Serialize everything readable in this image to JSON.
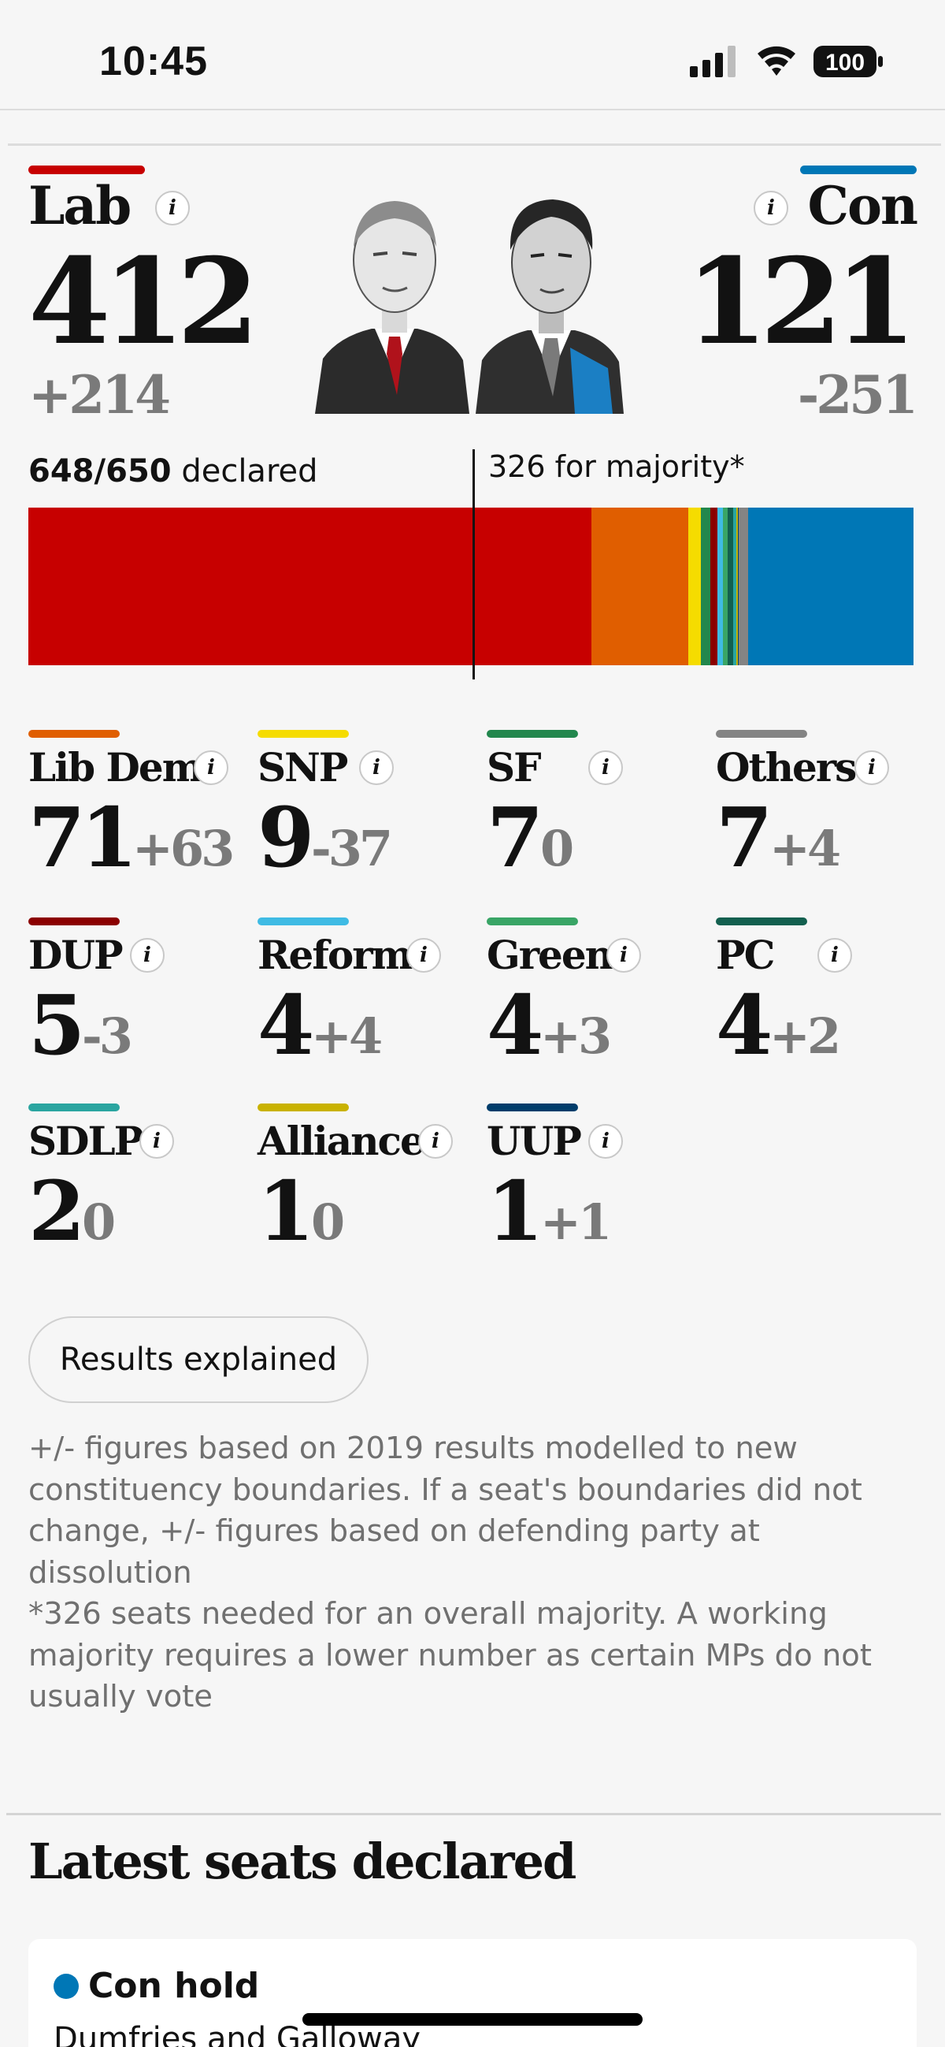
{
  "status_bar": {
    "time": "10:45",
    "battery": "100"
  },
  "headline": {
    "lab": {
      "name": "Lab",
      "seats": "412",
      "change": "+214",
      "color": "#c70000"
    },
    "con": {
      "name": "Con",
      "seats": "121",
      "change": "-251",
      "color": "#0077b6"
    }
  },
  "seat_bar": {
    "declared_count": "648/650",
    "declared_label": "declared",
    "majority_label": "326 for majority*",
    "total_seats": 650,
    "segments": [
      {
        "party": "Lab",
        "seats": 412,
        "color": "#c70000"
      },
      {
        "party": "Lib Dem",
        "seats": 71,
        "color": "#e05e00"
      },
      {
        "party": "SNP",
        "seats": 9,
        "color": "#f5dc00"
      },
      {
        "party": "SF",
        "seats": 7,
        "color": "#22874d"
      },
      {
        "party": "DUP",
        "seats": 5,
        "color": "#8b0000"
      },
      {
        "party": "Reform",
        "seats": 4,
        "color": "#3fbbe4"
      },
      {
        "party": "Green",
        "seats": 4,
        "color": "#39a566"
      },
      {
        "party": "PC",
        "seats": 4,
        "color": "#13604f"
      },
      {
        "party": "SDLP",
        "seats": 2,
        "color": "#2aa5a0"
      },
      {
        "party": "Alliance",
        "seats": 1,
        "color": "#c9b200"
      },
      {
        "party": "UUP",
        "seats": 1,
        "color": "#003d6b"
      },
      {
        "party": "Others",
        "seats": 7,
        "color": "#848484"
      },
      {
        "party": "Con",
        "seats": 121,
        "color": "#0077b6"
      }
    ]
  },
  "parties": [
    {
      "name": "Lib Dem",
      "seats": "71",
      "change": "+63",
      "color": "#e05e00"
    },
    {
      "name": "SNP",
      "seats": "9",
      "change": "-37",
      "color": "#f5dc00"
    },
    {
      "name": "SF",
      "seats": "7",
      "change": "0",
      "color": "#22874d"
    },
    {
      "name": "Others",
      "seats": "7",
      "change": "+4",
      "color": "#848484"
    },
    {
      "name": "DUP",
      "seats": "5",
      "change": "-3",
      "color": "#8b0000"
    },
    {
      "name": "Reform",
      "seats": "4",
      "change": "+4",
      "color": "#3fbbe4"
    },
    {
      "name": "Green",
      "seats": "4",
      "change": "+3",
      "color": "#39a566"
    },
    {
      "name": "PC",
      "seats": "4",
      "change": "+2",
      "color": "#13604f"
    },
    {
      "name": "SDLP",
      "seats": "2",
      "change": "0",
      "color": "#2aa5a0"
    },
    {
      "name": "Alliance",
      "seats": "1",
      "change": "0",
      "color": "#c9b200"
    },
    {
      "name": "UUP",
      "seats": "1",
      "change": "+1",
      "color": "#003d6b"
    }
  ],
  "results_button": "Results explained",
  "notes": {
    "line1": "+/- figures based on 2019 results modelled to new constituency boundaries. If a seat's boundaries did not change, +/- figures based on defending party at dissolution",
    "line2": "*326 seats needed for an overall majority. A working majority requires a lower number as certain MPs do not usually vote"
  },
  "latest": {
    "title": "Latest seats declared",
    "first": {
      "result": "Con hold",
      "seat": "Dumfries and Galloway",
      "color": "#0077b6"
    }
  }
}
